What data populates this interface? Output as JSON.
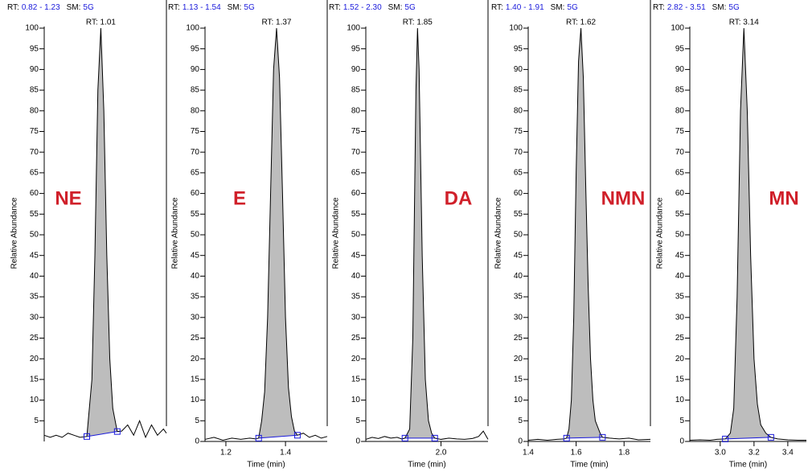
{
  "chart_data": [
    {
      "type": "line",
      "rt_label": "RT:",
      "rt_range": "0.82 - 1.23",
      "sm_label": "SM:",
      "sm": "5G",
      "peak_label": "RT: 1.01",
      "annotation": "NE",
      "ylabel": "Relative Abundance",
      "x_axis": false,
      "xlim": [
        0.82,
        1.23
      ],
      "ylim": [
        0,
        100
      ],
      "yticks": [
        5,
        10,
        15,
        20,
        25,
        30,
        35,
        40,
        45,
        50,
        55,
        60,
        65,
        70,
        75,
        80,
        85,
        90,
        95,
        100
      ],
      "xticks": [],
      "x": [
        0.82,
        0.84,
        0.86,
        0.88,
        0.9,
        0.92,
        0.94,
        0.963,
        0.98,
        0.99,
        1.0,
        1.01,
        1.02,
        1.03,
        1.04,
        1.05,
        1.065,
        1.08,
        1.1,
        1.12,
        1.14,
        1.16,
        1.18,
        1.2,
        1.22,
        1.23
      ],
      "series": [
        {
          "color": "#000000",
          "values": [
            1.5,
            1,
            1.5,
            1,
            2,
            1.5,
            1,
            1.2,
            15,
            45,
            85,
            100,
            80,
            45,
            20,
            8,
            2.4,
            2.5,
            4,
            1.5,
            5,
            1,
            4,
            1.5,
            3,
            2
          ]
        }
      ],
      "baseline": {
        "color": "#1a1adb",
        "x": [
          0.963,
          1.065
        ],
        "values": [
          1.2,
          2.4
        ]
      }
    },
    {
      "type": "line",
      "rt_label": "RT:",
      "rt_range": "1.13 - 1.54",
      "sm_label": "SM:",
      "sm": "5G",
      "peak_label": "RT: 1.37",
      "annotation": "E",
      "ylabel": "Relative Abundance",
      "xlabel": "Time (min)",
      "x_axis": true,
      "xlim": [
        1.13,
        1.54
      ],
      "ylim": [
        0,
        100
      ],
      "yticks": [
        0,
        5,
        10,
        15,
        20,
        25,
        30,
        35,
        40,
        45,
        50,
        55,
        60,
        65,
        70,
        75,
        80,
        85,
        90,
        95,
        100
      ],
      "xticks": [
        1.2,
        1.4
      ],
      "x": [
        1.13,
        1.16,
        1.19,
        1.22,
        1.25,
        1.28,
        1.3,
        1.31,
        1.32,
        1.33,
        1.34,
        1.35,
        1.36,
        1.37,
        1.38,
        1.39,
        1.4,
        1.41,
        1.42,
        1.43,
        1.44,
        1.46,
        1.48,
        1.5,
        1.52,
        1.54
      ],
      "series": [
        {
          "color": "#000000",
          "values": [
            0.5,
            1,
            0.3,
            0.8,
            0.5,
            0.8,
            0.6,
            0.8,
            5,
            12,
            30,
            60,
            90,
            100,
            88,
            60,
            30,
            13,
            6,
            2.5,
            1.5,
            2,
            1,
            1.5,
            0.8,
            1.2
          ]
        }
      ],
      "baseline": {
        "color": "#1a1adb",
        "x": [
          1.31,
          1.44
        ],
        "values": [
          0.8,
          1.5
        ]
      }
    },
    {
      "type": "line",
      "rt_label": "RT:",
      "rt_range": "1.52 - 2.30",
      "sm_label": "SM:",
      "sm": "5G",
      "peak_label": "RT: 1.85",
      "annotation": "DA",
      "ylabel": "Relative Abundance",
      "xlabel": "Time (min)",
      "x_axis": true,
      "xlim": [
        1.52,
        2.3
      ],
      "ylim": [
        0,
        100
      ],
      "yticks": [
        0,
        5,
        10,
        15,
        20,
        25,
        30,
        35,
        40,
        45,
        50,
        55,
        60,
        65,
        70,
        75,
        80,
        85,
        90,
        95,
        100
      ],
      "xticks": [
        {
          "value": 2.0,
          "label": "2.0"
        }
      ],
      "x": [
        1.52,
        1.56,
        1.6,
        1.64,
        1.68,
        1.72,
        1.75,
        1.77,
        1.8,
        1.82,
        1.84,
        1.85,
        1.86,
        1.88,
        1.9,
        1.92,
        1.94,
        1.96,
        2.0,
        2.05,
        2.1,
        2.15,
        2.2,
        2.24,
        2.27,
        2.3
      ],
      "series": [
        {
          "color": "#000000",
          "values": [
            0.5,
            1,
            0.7,
            1.2,
            0.8,
            1,
            0.6,
            0.8,
            3,
            25,
            85,
            100,
            90,
            45,
            15,
            5,
            2,
            0.8,
            0.5,
            0.8,
            0.6,
            0.5,
            0.7,
            1.2,
            2.5,
            0.5
          ]
        }
      ],
      "baseline": {
        "color": "#1a1adb",
        "x": [
          1.77,
          1.96
        ],
        "values": [
          0.8,
          0.8
        ]
      }
    },
    {
      "type": "line",
      "rt_label": "RT:",
      "rt_range": "1.40 - 1.91",
      "sm_label": "SM:",
      "sm": "5G",
      "peak_label": "RT: 1.62",
      "annotation": "NMN",
      "ylabel": "Relative Abundance",
      "xlabel": "Time (min)",
      "x_axis": true,
      "xlim": [
        1.4,
        1.91
      ],
      "ylim": [
        0,
        100
      ],
      "yticks": [
        0,
        5,
        10,
        15,
        20,
        25,
        30,
        35,
        40,
        45,
        50,
        55,
        60,
        65,
        70,
        75,
        80,
        85,
        90,
        95,
        100
      ],
      "xticks": [
        1.4,
        1.6,
        1.8
      ],
      "x": [
        1.4,
        1.44,
        1.48,
        1.52,
        1.55,
        1.56,
        1.57,
        1.58,
        1.59,
        1.6,
        1.61,
        1.62,
        1.63,
        1.64,
        1.65,
        1.66,
        1.67,
        1.68,
        1.7,
        1.71,
        1.74,
        1.78,
        1.82,
        1.86,
        1.91
      ],
      "series": [
        {
          "color": "#000000",
          "values": [
            0.3,
            0.5,
            0.3,
            0.5,
            0.6,
            0.8,
            3,
            10,
            30,
            65,
            92,
            100,
            88,
            62,
            38,
            20,
            10,
            5,
            2,
            1,
            0.8,
            0.6,
            0.8,
            0.4,
            0.5
          ]
        }
      ],
      "baseline": {
        "color": "#1a1adb",
        "x": [
          1.56,
          1.71
        ],
        "values": [
          0.8,
          1
        ]
      }
    },
    {
      "type": "line",
      "rt_label": "RT:",
      "rt_range": "2.82 - 3.51",
      "sm_label": "SM:",
      "sm": "5G",
      "peak_label": "RT: 3.14",
      "annotation": "MN",
      "ylabel": "Relative Abundance",
      "xlabel": "Time (min)",
      "x_axis": true,
      "xlim": [
        2.82,
        3.51
      ],
      "ylim": [
        0,
        100
      ],
      "yticks": [
        0,
        5,
        10,
        15,
        20,
        25,
        30,
        35,
        40,
        45,
        50,
        55,
        60,
        65,
        70,
        75,
        80,
        85,
        90,
        95,
        100
      ],
      "xticks": [
        {
          "value": 3.0,
          "label": "3.0"
        },
        3.2,
        3.4
      ],
      "x": [
        2.82,
        2.88,
        2.94,
        2.98,
        3.03,
        3.06,
        3.08,
        3.1,
        3.12,
        3.14,
        3.16,
        3.18,
        3.2,
        3.22,
        3.24,
        3.27,
        3.3,
        3.34,
        3.4,
        3.46,
        3.51
      ],
      "series": [
        {
          "color": "#000000",
          "values": [
            0.3,
            0.4,
            0.3,
            0.5,
            0.6,
            2,
            8,
            35,
            80,
            100,
            80,
            45,
            20,
            9,
            4,
            2,
            1,
            0.6,
            0.4,
            0.3,
            0.3
          ]
        }
      ],
      "baseline": {
        "color": "#1a1adb",
        "x": [
          3.03,
          3.3
        ],
        "values": [
          0.6,
          1
        ]
      }
    }
  ]
}
